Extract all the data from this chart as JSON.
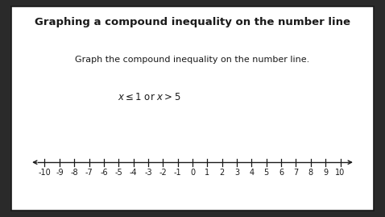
{
  "title": "Graphing a compound inequality on the number line",
  "subtitle": "Graph the compound inequality on the number line.",
  "inequality_text": "x ≤ 1 or x > 5",
  "number_line_min": -10,
  "number_line_max": 10,
  "tick_step": 1,
  "background_color": "#ffffff",
  "border_color": "#1a1a1a",
  "text_color": "#1a1a1a",
  "line_color": "#1a1a1a",
  "title_fontsize": 9.5,
  "subtitle_fontsize": 8.0,
  "inequality_fontsize": 8.5,
  "tick_label_fontsize": 7.0,
  "figure_bg": "#2a2a2a"
}
